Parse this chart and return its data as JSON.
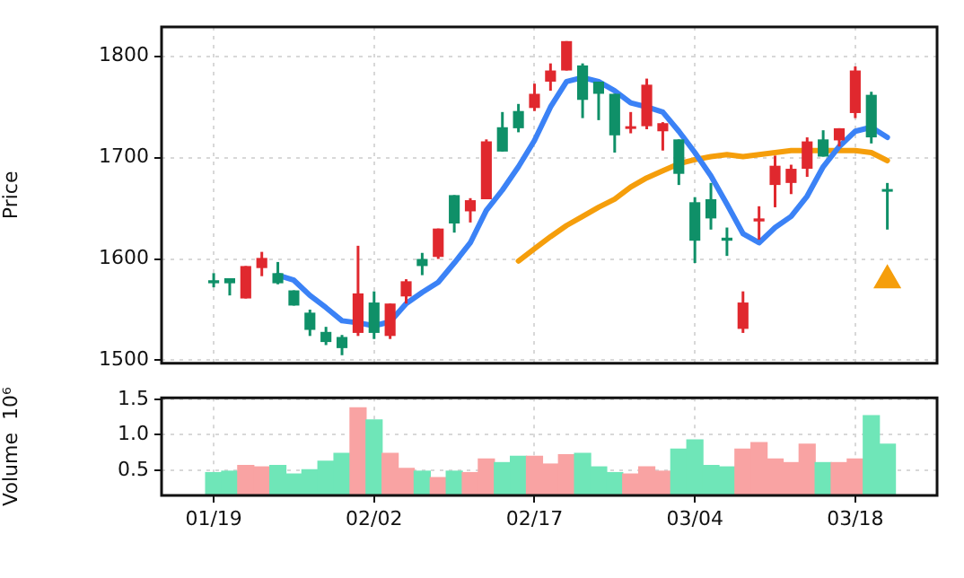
{
  "chart_data": [
    {
      "type": "candlestick",
      "ylabel": "Price",
      "categories": [
        null,
        null,
        null,
        null,
        null,
        null,
        null,
        null,
        null,
        null,
        null,
        null,
        null,
        null,
        null,
        null,
        null,
        null,
        null,
        null,
        null,
        null,
        null,
        null,
        null,
        null,
        null,
        null,
        null,
        null,
        null,
        null,
        null,
        null,
        null,
        null,
        null,
        null,
        null,
        null,
        null,
        null,
        null
      ],
      "ohlc": [
        [
          1579,
          1586,
          1572,
          1576
        ],
        [
          1581,
          1581,
          1564,
          1576
        ],
        [
          1561,
          1593,
          1561,
          1593
        ],
        [
          1591,
          1607,
          1583,
          1601
        ],
        [
          1586,
          1597,
          1575,
          1576
        ],
        [
          1569,
          1569,
          1554,
          1554
        ],
        [
          1547,
          1550,
          1524,
          1530
        ],
        [
          1528,
          1533,
          1515,
          1518
        ],
        [
          1523,
          1525,
          1505,
          1512
        ],
        [
          1527,
          1613,
          1524,
          1566
        ],
        [
          1557,
          1568,
          1521,
          1527
        ],
        [
          1524,
          1556,
          1521,
          1556
        ],
        [
          1563,
          1580,
          1556,
          1578
        ],
        [
          1600,
          1606,
          1584,
          1593
        ],
        [
          1602,
          1630,
          1600,
          1630
        ],
        [
          1663,
          1663,
          1626,
          1635
        ],
        [
          1647,
          1660,
          1636,
          1658
        ],
        [
          1659,
          1718,
          1659,
          1716
        ],
        [
          1730,
          1745,
          1706,
          1706
        ],
        [
          1746,
          1753,
          1725,
          1729
        ],
        [
          1749,
          1773,
          1746,
          1763
        ],
        [
          1775,
          1793,
          1766,
          1786
        ],
        [
          1786,
          1815,
          1786,
          1815
        ],
        [
          1791,
          1793,
          1739,
          1757
        ],
        [
          1775,
          1775,
          1737,
          1763
        ],
        [
          1763,
          1763,
          1705,
          1722
        ],
        [
          1729,
          1745,
          1724,
          1731
        ],
        [
          1731,
          1778,
          1728,
          1772
        ],
        [
          1726,
          1735,
          1707,
          1734
        ],
        [
          1718,
          1718,
          1673,
          1684
        ],
        [
          1656,
          1661,
          1596,
          1618
        ],
        [
          1659,
          1675,
          1629,
          1640
        ],
        [
          1621,
          1631,
          1603,
          1618
        ],
        [
          1531,
          1568,
          1527,
          1557
        ],
        [
          1637,
          1652,
          1619,
          1640
        ],
        [
          1673,
          1702,
          1651,
          1692
        ],
        [
          1675,
          1693,
          1664,
          1689
        ],
        [
          1689,
          1720,
          1681,
          1716
        ],
        [
          1718,
          1727,
          1701,
          1701
        ],
        [
          1717,
          1729,
          1711,
          1729
        ],
        [
          1744,
          1790,
          1739,
          1786
        ],
        [
          1762,
          1765,
          1714,
          1720
        ],
        [
          1669,
          1675,
          1629,
          1668
        ]
      ],
      "colors": [
        "#0f9068",
        "#0f9068",
        "#e0282e",
        "#e0282e",
        "#0f9068",
        "#0f9068",
        "#0f9068",
        "#0f9068",
        "#0f9068",
        "#e0282e",
        "#0f9068",
        "#e0282e",
        "#e0282e",
        "#0f9068",
        "#e0282e",
        "#0f9068",
        "#e0282e",
        "#e0282e",
        "#0f9068",
        "#0f9068",
        "#e0282e",
        "#e0282e",
        "#e0282e",
        "#0f9068",
        "#0f9068",
        "#0f9068",
        "#e0282e",
        "#e0282e",
        "#e0282e",
        "#0f9068",
        "#0f9068",
        "#0f9068",
        "#0f9068",
        "#e0282e",
        "#e0282e",
        "#e0282e",
        "#e0282e",
        "#e0282e",
        "#0f9068",
        "#e0282e",
        "#e0282e",
        "#0f9068",
        "#0f9068"
      ],
      "series": [
        {
          "type": "line",
          "color": "#3b82f6",
          "values": [
            null,
            null,
            null,
            null,
            1584,
            1579,
            1564,
            1552,
            1539,
            1537,
            1534,
            1538,
            1556,
            1567,
            1577,
            1596,
            1616,
            1648,
            1668,
            1691,
            1717,
            1750,
            1775,
            1779,
            1775,
            1766,
            1754,
            1750,
            1745,
            1726,
            1705,
            1682,
            1654,
            1625,
            1616,
            1631,
            1642,
            1662,
            1691,
            1711,
            1726,
            1730,
            1720
          ]
        },
        {
          "type": "line",
          "color": "#f59e0b",
          "values": [
            null,
            null,
            null,
            null,
            null,
            null,
            null,
            null,
            null,
            null,
            null,
            null,
            null,
            null,
            null,
            null,
            null,
            null,
            null,
            1598,
            1610,
            1622,
            1633,
            1642,
            1651,
            1659,
            1671,
            1680,
            1687,
            1694,
            1698,
            1701,
            1703,
            1701,
            1703,
            1705,
            1707,
            1707,
            1707,
            1707,
            1707,
            1705,
            1697
          ]
        },
        {
          "type": "scatter",
          "color": "#f59e0b",
          "marker": "triangle",
          "values": [
            null,
            null,
            null,
            null,
            null,
            null,
            null,
            null,
            null,
            null,
            null,
            null,
            null,
            null,
            null,
            null,
            null,
            null,
            null,
            null,
            null,
            null,
            null,
            null,
            null,
            null,
            null,
            null,
            null,
            null,
            null,
            null,
            null,
            null,
            null,
            null,
            null,
            null,
            null,
            null,
            null,
            null,
            1579
          ]
        }
      ],
      "ylim": [
        1497,
        1829
      ],
      "yticks": [
        1500,
        1600,
        1700,
        1800
      ],
      "grid": true,
      "tick_labels": "y"
    },
    {
      "type": "bar",
      "ylabel": "Volume  10⁶",
      "categories": [
        "01/19",
        null,
        null,
        null,
        null,
        null,
        null,
        null,
        null,
        null,
        "02/02",
        null,
        null,
        null,
        null,
        null,
        null,
        null,
        null,
        null,
        "02/17",
        null,
        null,
        null,
        null,
        null,
        null,
        null,
        null,
        null,
        "03/04",
        null,
        null,
        null,
        null,
        null,
        null,
        null,
        null,
        null,
        "03/18",
        null,
        null
      ],
      "values": [
        0.47,
        0.49,
        0.57,
        0.55,
        0.57,
        0.45,
        0.51,
        0.63,
        0.74,
        1.38,
        1.21,
        0.74,
        0.53,
        0.49,
        0.4,
        0.49,
        0.47,
        0.66,
        0.61,
        0.7,
        0.7,
        0.59,
        0.72,
        0.74,
        0.55,
        0.47,
        0.45,
        0.55,
        0.49,
        0.8,
        0.93,
        0.57,
        0.55,
        0.8,
        0.89,
        0.66,
        0.61,
        0.87,
        0.61,
        0.61,
        0.66,
        1.27,
        0.87
      ],
      "colors": [
        "#6fe6b8",
        "#6fe6b8",
        "#f9a3a3",
        "#f9a3a3",
        "#6fe6b8",
        "#6fe6b8",
        "#6fe6b8",
        "#6fe6b8",
        "#6fe6b8",
        "#f9a3a3",
        "#6fe6b8",
        "#f9a3a3",
        "#f9a3a3",
        "#6fe6b8",
        "#f9a3a3",
        "#6fe6b8",
        "#f9a3a3",
        "#f9a3a3",
        "#6fe6b8",
        "#6fe6b8",
        "#f9a3a3",
        "#f9a3a3",
        "#f9a3a3",
        "#6fe6b8",
        "#6fe6b8",
        "#6fe6b8",
        "#f9a3a3",
        "#f9a3a3",
        "#f9a3a3",
        "#6fe6b8",
        "#6fe6b8",
        "#6fe6b8",
        "#6fe6b8",
        "#f9a3a3",
        "#f9a3a3",
        "#f9a3a3",
        "#f9a3a3",
        "#f9a3a3",
        "#6fe6b8",
        "#f9a3a3",
        "#f9a3a3",
        "#6fe6b8",
        "#6fe6b8"
      ],
      "ylim": [
        0.15,
        1.52
      ],
      "yticks": [
        0.5,
        {
          "value": 1,
          "label": "1.0"
        },
        1.5
      ],
      "grid": true
    }
  ]
}
